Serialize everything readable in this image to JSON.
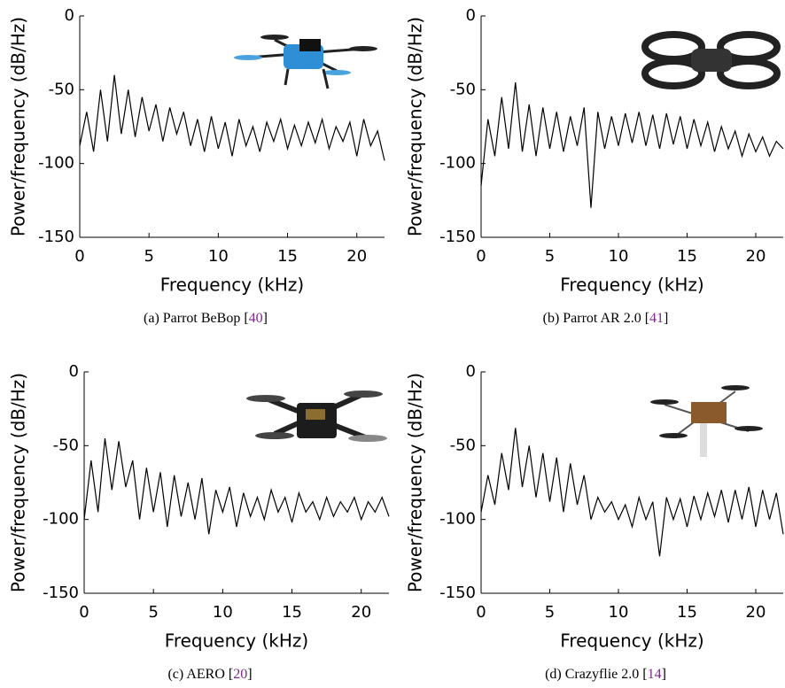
{
  "chart_data": [
    {
      "type": "line",
      "xlabel": "Frequency (kHz)",
      "ylabel": "Power/frequency (dB/Hz)",
      "caption": [
        "(a)  Parrot BeBop [",
        "40",
        "]"
      ],
      "xlim": [
        0,
        22
      ],
      "ylim": [
        -150,
        0
      ],
      "xticks": [
        0,
        5,
        10,
        15,
        20
      ],
      "yticks": [
        0,
        -50,
        -100,
        -150
      ],
      "color": "#000000",
      "x": [
        0,
        0.5,
        1,
        1.5,
        2,
        2.5,
        3,
        3.5,
        4,
        4.5,
        5,
        5.5,
        6,
        6.5,
        7,
        7.5,
        8,
        8.5,
        9,
        9.5,
        10,
        10.5,
        11,
        11.5,
        12,
        12.5,
        13,
        13.5,
        14,
        14.5,
        15,
        15.5,
        16,
        16.5,
        17,
        17.5,
        18,
        18.5,
        19,
        19.5,
        20,
        20.5,
        21,
        21.5,
        22
      ],
      "values": [
        -88,
        -65,
        -92,
        -50,
        -85,
        -40,
        -80,
        -50,
        -82,
        -55,
        -78,
        -60,
        -85,
        -62,
        -80,
        -65,
        -88,
        -70,
        -92,
        -68,
        -90,
        -72,
        -95,
        -70,
        -88,
        -75,
        -92,
        -72,
        -85,
        -70,
        -90,
        -74,
        -88,
        -72,
        -86,
        -70,
        -90,
        -75,
        -85,
        -72,
        -95,
        -70,
        -88,
        -78,
        -98
      ]
    },
    {
      "type": "line",
      "xlabel": "Frequency (kHz)",
      "ylabel": "Power/frequency (dB/Hz)",
      "caption": [
        "(b)  Parrot AR 2.0 [",
        "41",
        "]"
      ],
      "xlim": [
        0,
        22
      ],
      "ylim": [
        -150,
        0
      ],
      "xticks": [
        0,
        5,
        10,
        15,
        20
      ],
      "yticks": [
        0,
        -50,
        -100,
        -150
      ],
      "color": "#000000",
      "x": [
        0,
        0.5,
        1,
        1.5,
        2,
        2.5,
        3,
        3.5,
        4,
        4.5,
        5,
        5.5,
        6,
        6.5,
        7,
        7.5,
        8,
        8.5,
        9,
        9.5,
        10,
        10.5,
        11,
        11.5,
        12,
        12.5,
        13,
        13.5,
        14,
        14.5,
        15,
        15.5,
        16,
        16.5,
        17,
        17.5,
        18,
        18.5,
        19,
        19.5,
        20,
        20.5,
        21,
        21.5,
        22
      ],
      "values": [
        -115,
        -70,
        -95,
        -55,
        -90,
        -45,
        -92,
        -60,
        -95,
        -62,
        -90,
        -65,
        -92,
        -68,
        -88,
        -62,
        -130,
        -65,
        -90,
        -68,
        -88,
        -66,
        -86,
        -65,
        -88,
        -67,
        -90,
        -66,
        -87,
        -68,
        -90,
        -70,
        -88,
        -72,
        -92,
        -75,
        -90,
        -78,
        -95,
        -80,
        -92,
        -82,
        -95,
        -85,
        -90
      ]
    },
    {
      "type": "line",
      "xlabel": "Frequency (kHz)",
      "ylabel": "Power/frequency (dB/Hz)",
      "caption": [
        "(c)  AERO [",
        "20",
        "]"
      ],
      "xlim": [
        0,
        22
      ],
      "ylim": [
        -150,
        0
      ],
      "xticks": [
        0,
        5,
        10,
        15,
        20
      ],
      "yticks": [
        0,
        -50,
        -100,
        -150
      ],
      "color": "#000000",
      "x": [
        0,
        0.5,
        1,
        1.5,
        2,
        2.5,
        3,
        3.5,
        4,
        4.5,
        5,
        5.5,
        6,
        6.5,
        7,
        7.5,
        8,
        8.5,
        9,
        9.5,
        10,
        10.5,
        11,
        11.5,
        12,
        12.5,
        13,
        13.5,
        14,
        14.5,
        15,
        15.5,
        16,
        16.5,
        17,
        17.5,
        18,
        18.5,
        19,
        19.5,
        20,
        20.5,
        21,
        21.5,
        22
      ],
      "values": [
        -100,
        -60,
        -95,
        -45,
        -80,
        -47,
        -78,
        -60,
        -100,
        -65,
        -95,
        -68,
        -105,
        -70,
        -98,
        -75,
        -100,
        -72,
        -110,
        -80,
        -95,
        -78,
        -105,
        -82,
        -98,
        -85,
        -100,
        -80,
        -95,
        -85,
        -102,
        -82,
        -95,
        -88,
        -100,
        -85,
        -98,
        -88,
        -95,
        -85,
        -100,
        -88,
        -95,
        -85,
        -98
      ]
    },
    {
      "type": "line",
      "xlabel": "Frequency (kHz)",
      "ylabel": "Power/frequency (dB/Hz)",
      "caption": [
        "(d)  Crazyflie 2.0 [",
        "14",
        "]"
      ],
      "xlim": [
        0,
        22
      ],
      "ylim": [
        -150,
        0
      ],
      "xticks": [
        0,
        5,
        10,
        15,
        20
      ],
      "yticks": [
        0,
        -50,
        -100,
        -150
      ],
      "color": "#000000",
      "x": [
        0,
        0.5,
        1,
        1.5,
        2,
        2.5,
        3,
        3.5,
        4,
        4.5,
        5,
        5.5,
        6,
        6.5,
        7,
        7.5,
        8,
        8.5,
        9,
        9.5,
        10,
        10.5,
        11,
        11.5,
        12,
        12.5,
        13,
        13.5,
        14,
        14.5,
        15,
        15.5,
        16,
        16.5,
        17,
        17.5,
        18,
        18.5,
        19,
        19.5,
        20,
        20.5,
        21,
        21.5,
        22
      ],
      "values": [
        -95,
        -70,
        -90,
        -55,
        -80,
        -38,
        -78,
        -50,
        -85,
        -55,
        -88,
        -58,
        -95,
        -62,
        -90,
        -70,
        -100,
        -85,
        -95,
        -88,
        -100,
        -90,
        -105,
        -85,
        -100,
        -88,
        -125,
        -85,
        -100,
        -86,
        -105,
        -84,
        -100,
        -82,
        -98,
        -80,
        -102,
        -80,
        -100,
        -78,
        -105,
        -80,
        -100,
        -82,
        -110
      ]
    }
  ]
}
